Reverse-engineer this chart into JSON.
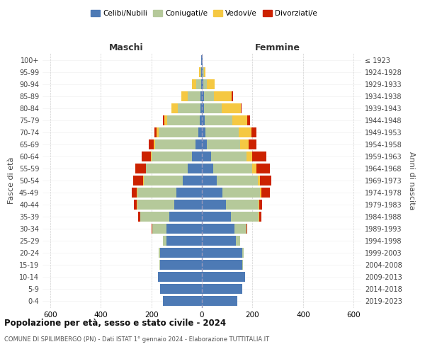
{
  "age_groups": [
    "0-4",
    "5-9",
    "10-14",
    "15-19",
    "20-24",
    "25-29",
    "30-34",
    "35-39",
    "40-44",
    "45-49",
    "50-54",
    "55-59",
    "60-64",
    "65-69",
    "70-74",
    "75-79",
    "80-84",
    "85-89",
    "90-94",
    "95-99",
    "100+"
  ],
  "birth_years": [
    "2019-2023",
    "2014-2018",
    "2009-2013",
    "2004-2008",
    "1999-2003",
    "1994-1998",
    "1989-1993",
    "1984-1988",
    "1979-1983",
    "1974-1978",
    "1969-1973",
    "1964-1968",
    "1959-1963",
    "1954-1958",
    "1949-1953",
    "1944-1948",
    "1939-1943",
    "1934-1938",
    "1929-1933",
    "1924-1928",
    "≤ 1923"
  ],
  "colors": {
    "celibi": "#4d7ab5",
    "coniugati": "#b5c99a",
    "vedovi": "#f5c842",
    "divorziati": "#cc2200"
  },
  "male": {
    "celibi": [
      155,
      165,
      175,
      165,
      165,
      140,
      140,
      130,
      110,
      100,
      75,
      55,
      40,
      25,
      15,
      8,
      5,
      5,
      3,
      2,
      2
    ],
    "coniugati": [
      0,
      0,
      0,
      2,
      5,
      15,
      55,
      115,
      145,
      155,
      155,
      165,
      160,
      160,
      155,
      130,
      90,
      50,
      20,
      5,
      0
    ],
    "vedovi": [
      0,
      0,
      0,
      0,
      0,
      0,
      0,
      0,
      2,
      2,
      2,
      2,
      2,
      5,
      8,
      10,
      25,
      25,
      15,
      5,
      0
    ],
    "divorziati": [
      0,
      0,
      0,
      0,
      0,
      0,
      5,
      8,
      12,
      20,
      40,
      40,
      35,
      20,
      10,
      5,
      0,
      0,
      0,
      0,
      0
    ]
  },
  "female": {
    "nubili": [
      140,
      160,
      170,
      160,
      160,
      135,
      130,
      115,
      95,
      80,
      60,
      45,
      35,
      20,
      15,
      10,
      8,
      8,
      5,
      2,
      2
    ],
    "coniugate": [
      0,
      0,
      0,
      2,
      5,
      15,
      45,
      110,
      130,
      150,
      160,
      155,
      140,
      130,
      130,
      110,
      70,
      40,
      15,
      5,
      0
    ],
    "vedove": [
      0,
      0,
      0,
      0,
      0,
      0,
      0,
      2,
      2,
      5,
      10,
      15,
      25,
      35,
      50,
      60,
      75,
      70,
      30,
      8,
      0
    ],
    "divorziate": [
      0,
      0,
      0,
      0,
      0,
      2,
      5,
      8,
      12,
      35,
      45,
      55,
      55,
      30,
      20,
      10,
      5,
      5,
      0,
      0,
      0
    ]
  },
  "xlim": 630,
  "title": "Popolazione per età, sesso e stato civile - 2024",
  "subtitle": "COMUNE DI SPILIMBERGO (PN) - Dati ISTAT 1° gennaio 2024 - Elaborazione TUTTITALIA.IT",
  "ylabel_left": "Fasce di età",
  "ylabel_right": "Anni di nascita",
  "xlabel_left": "Maschi",
  "xlabel_right": "Femmine",
  "legend_labels": [
    "Celibi/Nubili",
    "Coniugati/e",
    "Vedovi/e",
    "Divorziati/e"
  ],
  "background_color": "#ffffff",
  "grid_color": "#cccccc"
}
